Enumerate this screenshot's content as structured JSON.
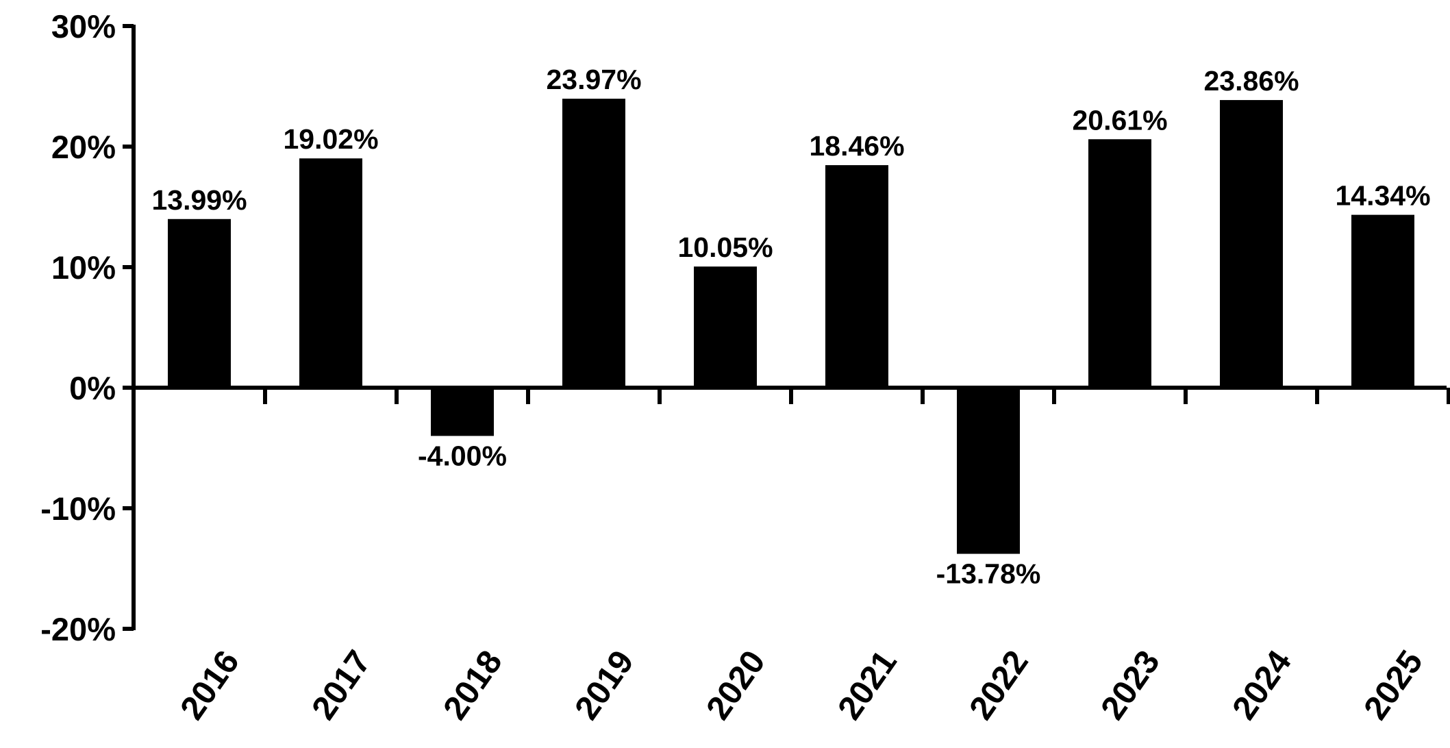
{
  "chart_data": {
    "type": "bar",
    "title": "",
    "xlabel": "",
    "ylabel": "",
    "categories": [
      "2016",
      "2017",
      "2018",
      "2019",
      "2020",
      "2021",
      "2022",
      "2023",
      "2024",
      "2025"
    ],
    "values": [
      13.99,
      19.02,
      -4.0,
      23.97,
      10.05,
      18.46,
      -13.78,
      20.61,
      23.86,
      14.34
    ],
    "value_labels": [
      "13.99%",
      "19.02%",
      "-4.00%",
      "23.97%",
      "10.05%",
      "18.46%",
      "-13.78%",
      "20.61%",
      "23.86%",
      "14.34%"
    ],
    "ylim": [
      -20,
      30
    ],
    "yticks": [
      30,
      20,
      10,
      0,
      -10,
      -20
    ],
    "ytick_labels": [
      "30%",
      "20%",
      "10%",
      "0%",
      "-10%",
      "-20%"
    ],
    "grid": false,
    "legend": "none",
    "colors": {
      "bar": "#000000",
      "axis": "#000000",
      "text": "#000000",
      "background": "#ffffff"
    }
  }
}
